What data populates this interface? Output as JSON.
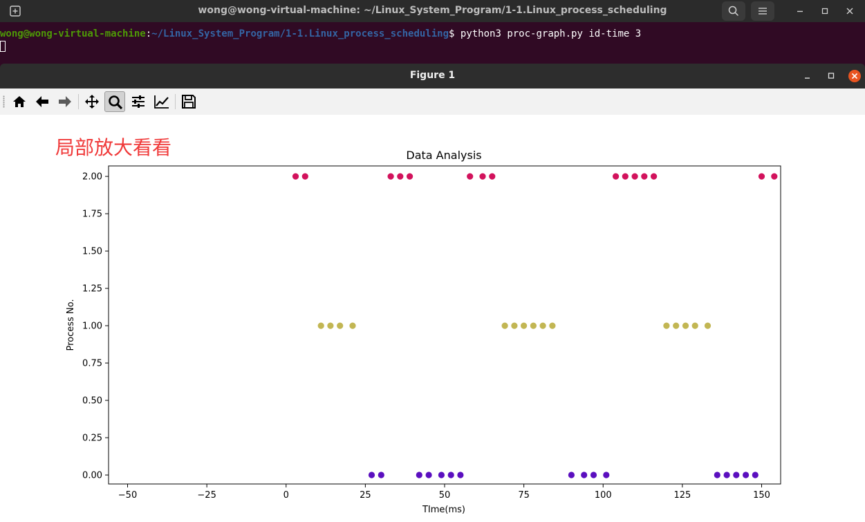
{
  "terminal": {
    "title": "wong@wong-virtual-machine: ~/Linux_System_Program/1-1.Linux_process_scheduling",
    "prompt_user": "wong@wong-virtual-machine",
    "prompt_colon": ":",
    "prompt_path": "~/Linux_System_Program/1-1.Linux_process_scheduling",
    "prompt_symbol": "$ ",
    "command": "python3 proc-graph.py id-time 3"
  },
  "figure": {
    "title": "Figure 1",
    "toolbar": [
      "home-icon",
      "back-icon",
      "forward-icon",
      "pan-icon",
      "zoom-icon",
      "subplots-icon",
      "edit-axis-icon",
      "save-icon"
    ],
    "annotation": "局部放大看看"
  },
  "colors": {
    "process_0": "#5b0fbf",
    "process_1": "#c2b653",
    "process_2": "#d2125c"
  },
  "chart_data": {
    "type": "scatter",
    "title": "Data Analysis",
    "xlabel": "TIme(ms)",
    "ylabel": "Process No.",
    "xlim": [
      -56,
      156
    ],
    "ylim": [
      -0.06,
      2.07
    ],
    "xticks": [
      -50,
      -25,
      0,
      25,
      50,
      75,
      100,
      125,
      150
    ],
    "xtick_labels": [
      "−50",
      "−25",
      "0",
      "25",
      "50",
      "75",
      "100",
      "125",
      "150"
    ],
    "yticks": [
      0.0,
      0.25,
      0.5,
      0.75,
      1.0,
      1.25,
      1.5,
      1.75,
      2.0
    ],
    "ytick_labels": [
      "0.00",
      "0.25",
      "0.50",
      "0.75",
      "1.00",
      "1.25",
      "1.50",
      "1.75",
      "2.00"
    ],
    "grid": false,
    "series": [
      {
        "process": 2,
        "color": "#d2125c",
        "x": [
          3,
          6,
          33,
          36,
          39,
          58,
          62,
          65,
          104,
          107,
          110,
          113,
          116,
          150,
          154
        ],
        "y": [
          2,
          2,
          2,
          2,
          2,
          2,
          2,
          2,
          2,
          2,
          2,
          2,
          2,
          2,
          2
        ]
      },
      {
        "process": 1,
        "color": "#c2b653",
        "x": [
          11,
          14,
          17,
          21,
          69,
          72,
          75,
          78,
          81,
          84,
          120,
          123,
          126,
          129,
          133
        ],
        "y": [
          1,
          1,
          1,
          1,
          1,
          1,
          1,
          1,
          1,
          1,
          1,
          1,
          1,
          1,
          1
        ]
      },
      {
        "process": 0,
        "color": "#5b0fbf",
        "x": [
          27,
          30,
          42,
          45,
          49,
          52,
          55,
          90,
          94,
          97,
          101,
          136,
          139,
          142,
          145,
          148
        ],
        "y": [
          0,
          0,
          0,
          0,
          0,
          0,
          0,
          0,
          0,
          0,
          0,
          0,
          0,
          0,
          0,
          0
        ]
      }
    ]
  }
}
